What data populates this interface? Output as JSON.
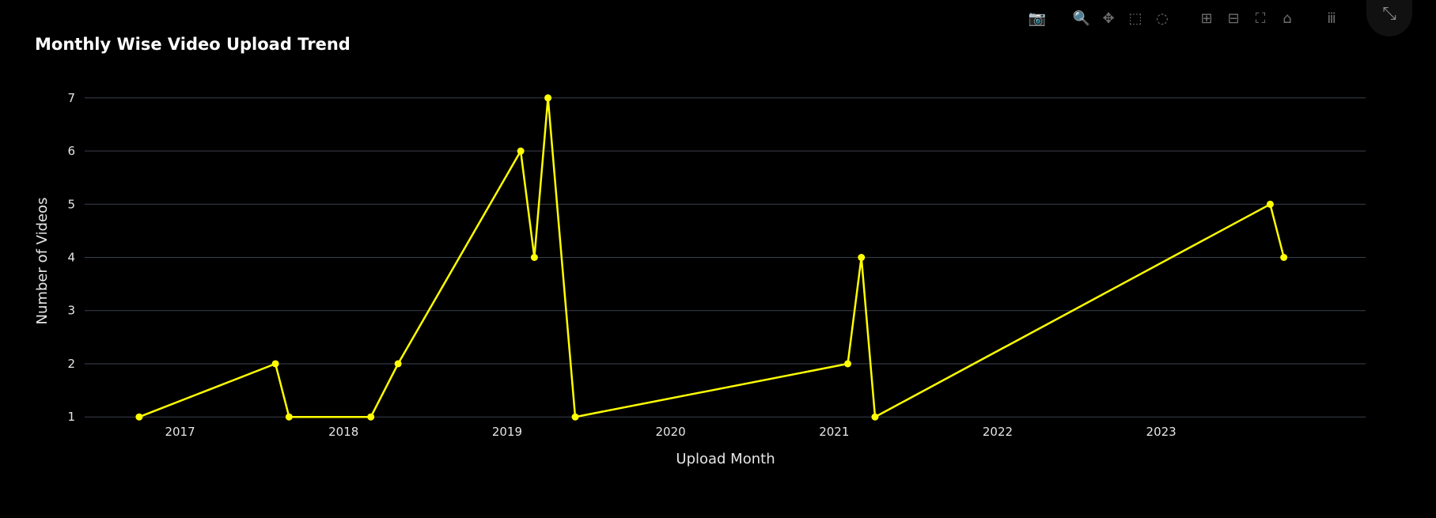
{
  "colors": {
    "line": "#ffff00",
    "grid": "#3a3f4b",
    "background": "#000000"
  },
  "modebar": {
    "buttons": [
      {
        "name": "camera-icon",
        "glyph": "📷"
      },
      {
        "name": "zoom-icon",
        "glyph": "🔍"
      },
      {
        "name": "pan-icon",
        "glyph": "✥"
      },
      {
        "name": "box-select-icon",
        "glyph": "⬚"
      },
      {
        "name": "lasso-icon",
        "glyph": "◌"
      },
      {
        "name": "zoom-in-icon",
        "glyph": "⊞"
      },
      {
        "name": "zoom-out-icon",
        "glyph": "⊟"
      },
      {
        "name": "autoscale-icon",
        "glyph": "⛶"
      },
      {
        "name": "home-icon",
        "glyph": "⌂"
      },
      {
        "name": "plotly-logo-icon",
        "glyph": "ⅲ"
      }
    ],
    "expand_glyph": "⤡"
  },
  "chart_data": {
    "type": "line",
    "title": "Monthly Wise Video Upload Trend",
    "xlabel": "Upload Month",
    "ylabel": "Number of Videos",
    "x": [
      "2016-10",
      "2017-08",
      "2017-09",
      "2018-03",
      "2018-05",
      "2019-02",
      "2019-03",
      "2019-04",
      "2019-06",
      "2021-02",
      "2021-03",
      "2021-04",
      "2023-09",
      "2023-10"
    ],
    "y": [
      1,
      2,
      1,
      1,
      2,
      6,
      4,
      7,
      1,
      2,
      4,
      1,
      5,
      4
    ],
    "x_ticks": [
      "2017",
      "2018",
      "2019",
      "2020",
      "2021",
      "2022",
      "2023"
    ],
    "y_ticks": [
      1,
      2,
      3,
      4,
      5,
      6,
      7
    ],
    "xlim": [
      "2016-06",
      "2024-04"
    ],
    "ylim": [
      0.75,
      7.25
    ],
    "grid": true,
    "markers": true
  }
}
